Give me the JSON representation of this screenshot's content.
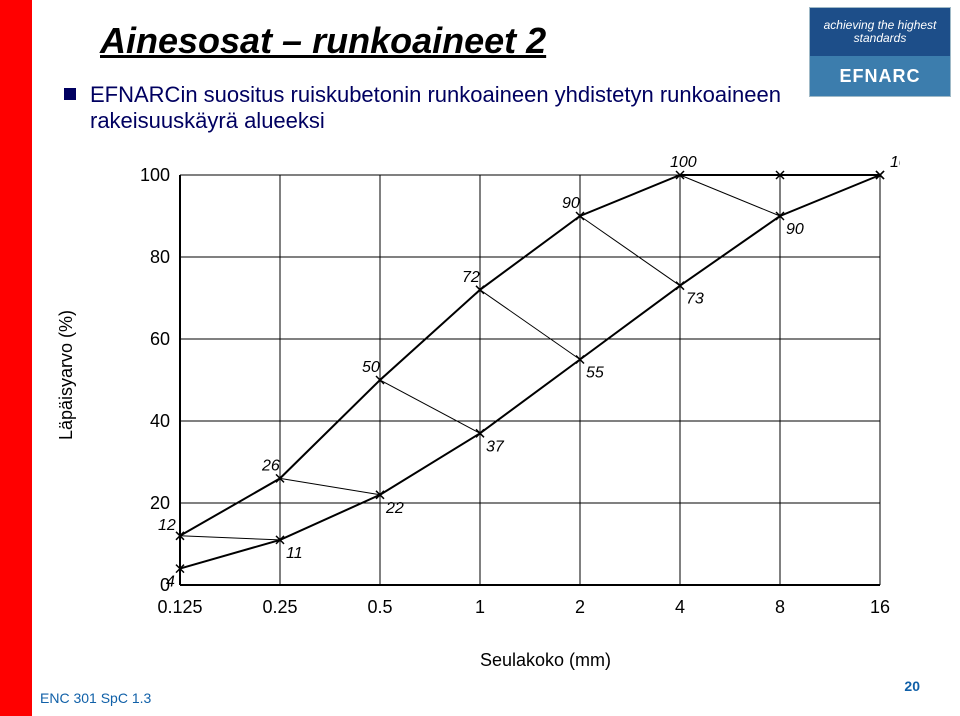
{
  "title": "Ainesosat – runkoaineet 2",
  "subtitle": "EFNARCin suositus ruiskubetonin runkoaineen yhdistetyn runkoaineen rakeisuuskäyrä alueeksi",
  "logo": {
    "top_text": "achieving the\nhighest standards",
    "brand": "EFNARC"
  },
  "ylabel": "Läpäisyarvo (%)",
  "xlabel": "Seulakoko (mm)",
  "footer_left": "ENC 301 SpC 1.3",
  "page_number": "20",
  "chart": {
    "type": "line_band",
    "x_categories": [
      "0.125",
      "0.25",
      "0.5",
      "1",
      "2",
      "4",
      "8",
      "16"
    ],
    "y_ticks": [
      0,
      20,
      40,
      60,
      80,
      100
    ],
    "upper_curve": [
      12,
      26,
      50,
      72,
      90,
      100,
      100,
      100
    ],
    "lower_curve": [
      4,
      11,
      22,
      37,
      55,
      73,
      90,
      100
    ],
    "line_color": "#000000",
    "line_width": 2,
    "grid_color": "#000000",
    "grid_width": 1,
    "background": "#ffffff",
    "label_fontsize": 16,
    "axis_fontsize": 18
  }
}
